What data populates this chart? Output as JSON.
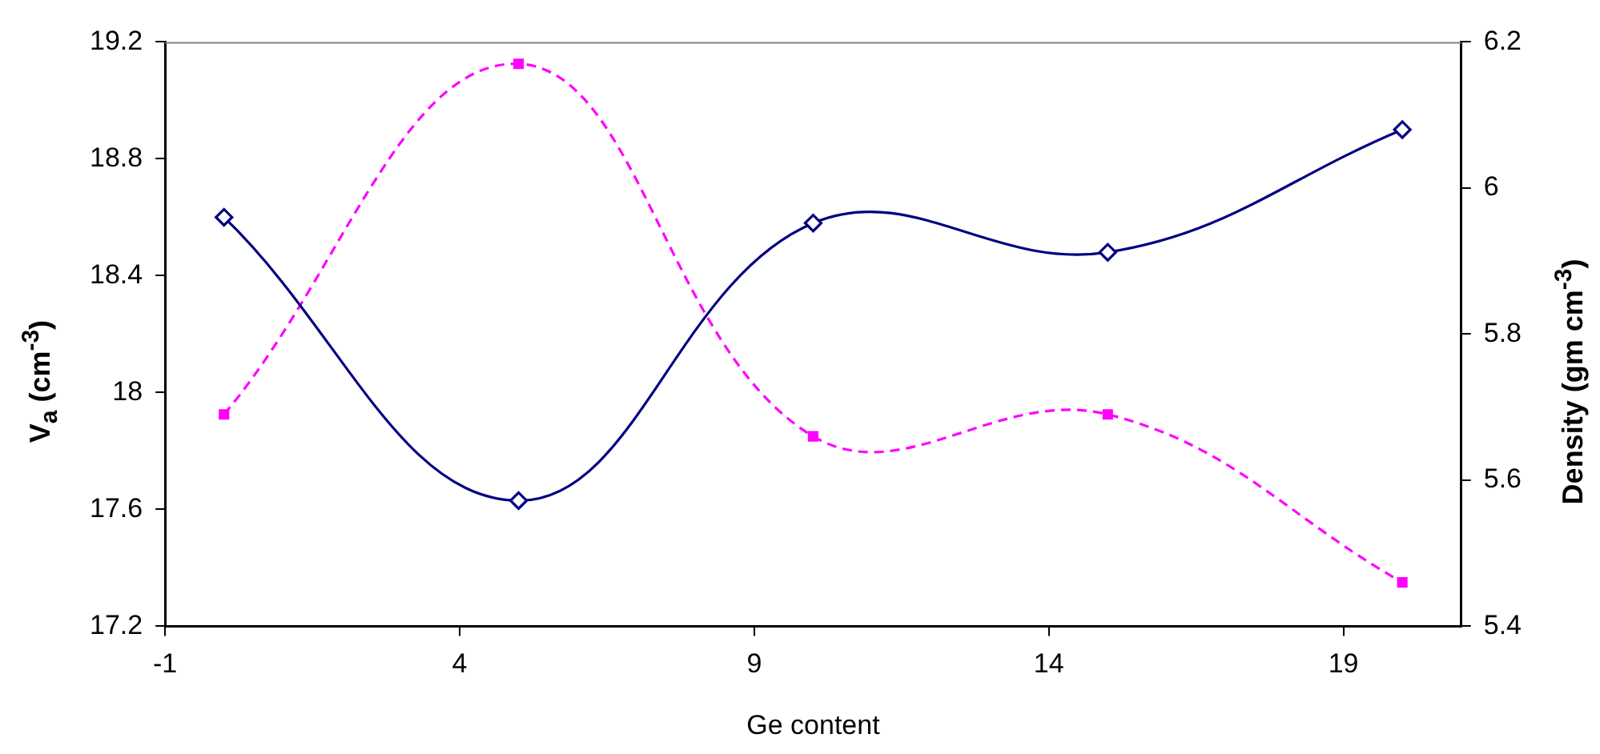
{
  "chart_data": {
    "type": "line",
    "xlabel": "Ge content",
    "ylabel": "V$_{a}$ (cm$^{-3}$)",
    "y2label": "Density (gm cm$^{-3}$)",
    "x": [
      0,
      5,
      10,
      15,
      20
    ],
    "series": [
      {
        "color": "#000080",
        "values": [
          18.6,
          17.63,
          18.58,
          18.48,
          18.9
        ],
        "marker": "diamond",
        "line_style": "solid"
      },
      {
        "color": "#ff00ff",
        "axis": "y2",
        "values": [
          5.69,
          6.17,
          5.66,
          5.69,
          5.46
        ],
        "marker": "square",
        "line_style": "dashed"
      }
    ],
    "xlim": [
      -1,
      21
    ],
    "xticks": [
      -1,
      4,
      9,
      14,
      19
    ],
    "ylim": [
      17.2,
      19.2
    ],
    "yticks": [
      17.2,
      17.6,
      18,
      18.4,
      18.8,
      19.2
    ],
    "y2lim": [
      5.4,
      6.2
    ],
    "y2ticks": [
      5.4,
      5.6,
      5.8,
      6,
      6.2
    ],
    "legend": false,
    "grid": false
  }
}
